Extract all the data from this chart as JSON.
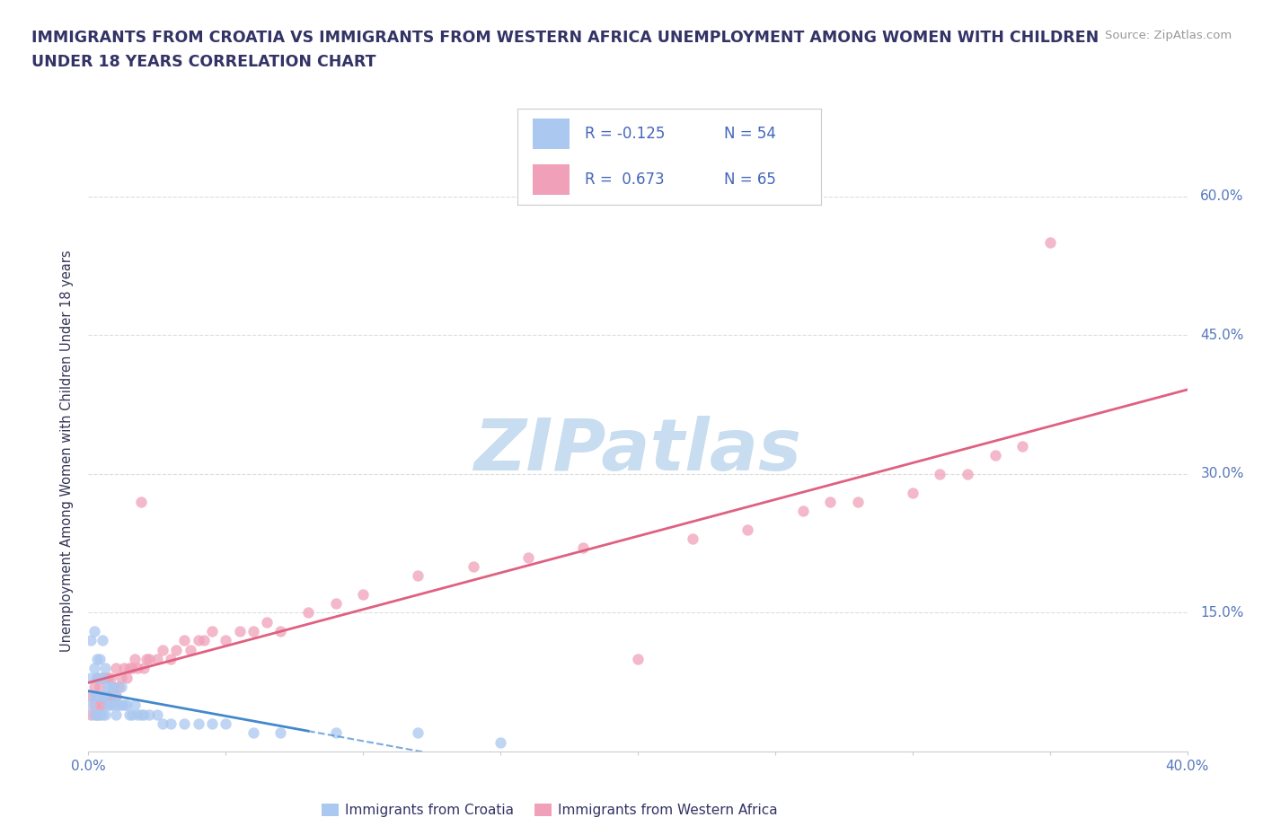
{
  "title_line1": "IMMIGRANTS FROM CROATIA VS IMMIGRANTS FROM WESTERN AFRICA UNEMPLOYMENT AMONG WOMEN WITH CHILDREN",
  "title_line2": "UNDER 18 YEARS CORRELATION CHART",
  "source": "Source: ZipAtlas.com",
  "ylabel": "Unemployment Among Women with Children Under 18 years",
  "xlim": [
    0.0,
    0.4
  ],
  "ylim": [
    0.0,
    0.65
  ],
  "xtick_positions": [
    0.0,
    0.05,
    0.1,
    0.15,
    0.2,
    0.25,
    0.3,
    0.35,
    0.4
  ],
  "ytick_positions": [
    0.15,
    0.3,
    0.45,
    0.6
  ],
  "ytick_labels": [
    "15.0%",
    "30.0%",
    "45.0%",
    "60.0%"
  ],
  "series1_name": "Immigrants from Croatia",
  "series1_color": "#aac8f0",
  "series1_R": -0.125,
  "series1_N": 54,
  "series1_line_color": "#4488cc",
  "series2_name": "Immigrants from Western Africa",
  "series2_color": "#f0a0b8",
  "series2_R": 0.673,
  "series2_N": 65,
  "series2_line_color": "#e06080",
  "watermark": "ZIPatlas",
  "watermark_color": "#c8ddf0",
  "background_color": "#ffffff",
  "grid_color": "#dddddd",
  "title_color": "#333366",
  "axis_label_color": "#333355",
  "tick_label_color": "#5577bb",
  "legend_text_color": "#333366",
  "legend_R_color": "#4466bb",
  "croatia_x": [
    0.001,
    0.001,
    0.001,
    0.002,
    0.002,
    0.002,
    0.002,
    0.003,
    0.003,
    0.003,
    0.003,
    0.004,
    0.004,
    0.004,
    0.004,
    0.005,
    0.005,
    0.005,
    0.005,
    0.006,
    0.006,
    0.006,
    0.007,
    0.007,
    0.008,
    0.008,
    0.009,
    0.009,
    0.01,
    0.01,
    0.011,
    0.012,
    0.012,
    0.013,
    0.014,
    0.015,
    0.016,
    0.017,
    0.018,
    0.019,
    0.02,
    0.022,
    0.025,
    0.027,
    0.03,
    0.035,
    0.04,
    0.045,
    0.05,
    0.06,
    0.07,
    0.09,
    0.12,
    0.15
  ],
  "croatia_y": [
    0.05,
    0.08,
    0.12,
    0.04,
    0.06,
    0.09,
    0.13,
    0.04,
    0.06,
    0.08,
    0.1,
    0.04,
    0.06,
    0.08,
    0.1,
    0.04,
    0.06,
    0.08,
    0.12,
    0.04,
    0.06,
    0.09,
    0.05,
    0.07,
    0.05,
    0.07,
    0.05,
    0.07,
    0.04,
    0.06,
    0.05,
    0.05,
    0.07,
    0.05,
    0.05,
    0.04,
    0.04,
    0.05,
    0.04,
    0.04,
    0.04,
    0.04,
    0.04,
    0.03,
    0.03,
    0.03,
    0.03,
    0.03,
    0.03,
    0.02,
    0.02,
    0.02,
    0.02,
    0.01
  ],
  "western_africa_x": [
    0.001,
    0.001,
    0.002,
    0.002,
    0.003,
    0.003,
    0.003,
    0.004,
    0.004,
    0.005,
    0.005,
    0.006,
    0.006,
    0.007,
    0.007,
    0.008,
    0.008,
    0.009,
    0.01,
    0.01,
    0.011,
    0.012,
    0.013,
    0.014,
    0.015,
    0.016,
    0.017,
    0.018,
    0.019,
    0.02,
    0.021,
    0.022,
    0.025,
    0.027,
    0.03,
    0.032,
    0.035,
    0.037,
    0.04,
    0.042,
    0.045,
    0.05,
    0.055,
    0.06,
    0.065,
    0.07,
    0.08,
    0.09,
    0.1,
    0.12,
    0.14,
    0.16,
    0.18,
    0.2,
    0.22,
    0.24,
    0.26,
    0.27,
    0.28,
    0.3,
    0.31,
    0.32,
    0.33,
    0.34,
    0.35
  ],
  "western_africa_y": [
    0.04,
    0.06,
    0.05,
    0.07,
    0.04,
    0.06,
    0.08,
    0.05,
    0.07,
    0.05,
    0.08,
    0.06,
    0.08,
    0.06,
    0.08,
    0.06,
    0.08,
    0.07,
    0.06,
    0.09,
    0.07,
    0.08,
    0.09,
    0.08,
    0.09,
    0.09,
    0.1,
    0.09,
    0.27,
    0.09,
    0.1,
    0.1,
    0.1,
    0.11,
    0.1,
    0.11,
    0.12,
    0.11,
    0.12,
    0.12,
    0.13,
    0.12,
    0.13,
    0.13,
    0.14,
    0.13,
    0.15,
    0.16,
    0.17,
    0.19,
    0.2,
    0.21,
    0.22,
    0.1,
    0.23,
    0.24,
    0.26,
    0.27,
    0.27,
    0.28,
    0.3,
    0.3,
    0.32,
    0.33,
    0.55
  ]
}
